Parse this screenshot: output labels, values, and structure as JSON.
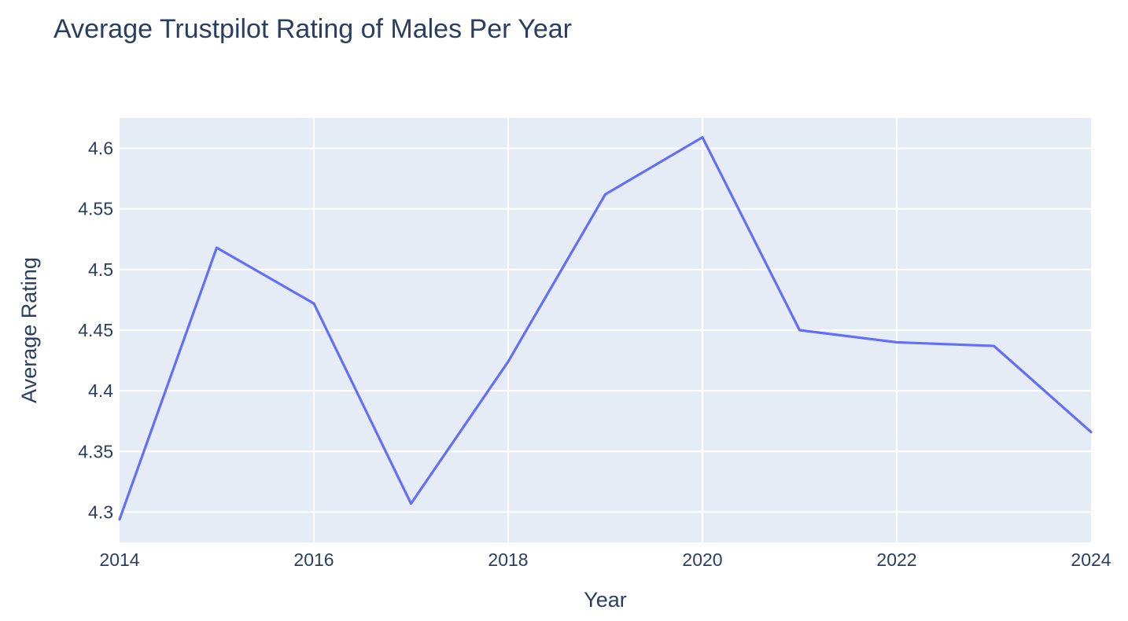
{
  "chart_data": {
    "type": "line",
    "title": "Average Trustpilot Rating of Males Per Year",
    "xlabel": "Year",
    "ylabel": "Average Rating",
    "x": [
      2014,
      2015,
      2016,
      2017,
      2018,
      2019,
      2020,
      2021,
      2022,
      2023,
      2024
    ],
    "series": [
      {
        "values": [
          4.294,
          4.518,
          4.472,
          4.307,
          4.424,
          4.562,
          4.609,
          4.45,
          4.44,
          4.437,
          4.366
        ]
      }
    ],
    "xlim": [
      2014,
      2024
    ],
    "ylim": [
      4.275,
      4.625
    ],
    "x_ticks": [
      2014,
      2016,
      2018,
      2020,
      2022,
      2024
    ],
    "x_tick_labels": [
      "2014",
      "2016",
      "2018",
      "2020",
      "2022",
      "2024"
    ],
    "y_ticks": [
      4.3,
      4.35,
      4.4,
      4.45,
      4.5,
      4.55,
      4.6
    ],
    "y_tick_labels": [
      "4.3",
      "4.35",
      "4.4",
      "4.45",
      "4.5",
      "4.55",
      "4.6"
    ],
    "grid": true,
    "legend": "none",
    "colors": {
      "line": "#636efa",
      "plot_background": "#e5ecf6",
      "grid": "#ffffff",
      "text": "#2a3f5f"
    }
  }
}
